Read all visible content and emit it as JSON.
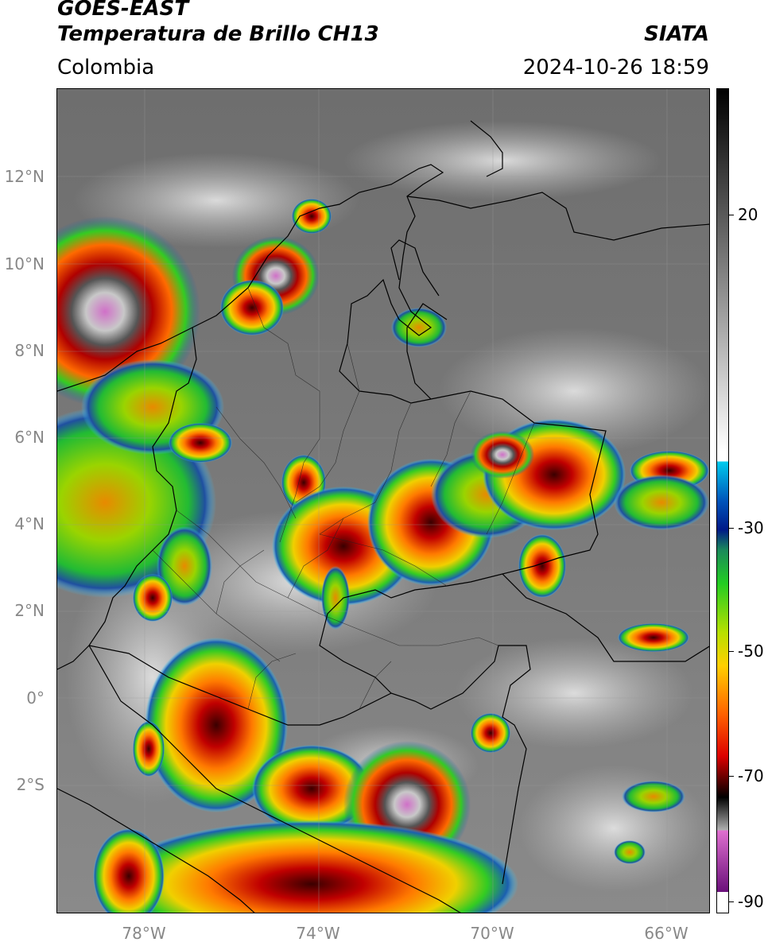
{
  "header": {
    "satellite": "GOES-EAST",
    "product": "Temperatura de Brillo CH13",
    "region": "Colombia",
    "organization": "SIATA",
    "datetime": "2024-10-26 18:59"
  },
  "map": {
    "lat_labels": [
      "12°N",
      "10°N",
      "8°N",
      "6°N",
      "4°N",
      "2°N",
      "0°",
      "2°S"
    ],
    "lon_labels": [
      "78°W",
      "74°W",
      "70°W",
      "66°W"
    ],
    "lat_range": [
      -4.8,
      14.1
    ],
    "lon_range": [
      -80,
      -65
    ]
  },
  "colorbar": {
    "ticks": [
      "20",
      "-30",
      "-50",
      "-70",
      "-90"
    ]
  }
}
